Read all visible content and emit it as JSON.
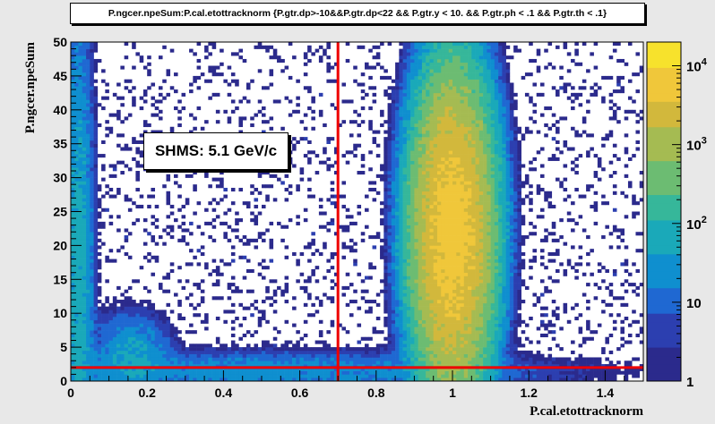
{
  "title": "P.ngcer.npeSum:P.cal.etottracknorm {P.gtr.dp>-10&&P.gtr.dp<22 && P.gtr.y < 10. && P.gtr.ph < .1 && P.gtr.th < .1}",
  "annotation": "SHMS: 5.1 GeV/c",
  "chart_data": {
    "type": "heatmap",
    "title": "P.ngcer.npeSum:P.cal.etottracknorm {P.gtr.dp>-10&&P.gtr.dp<22 && P.gtr.y < 10. && P.gtr.ph < .1 && P.gtr.th < .1}",
    "xlabel": "P.cal.etottracknorm",
    "ylabel": "P.ngcer.npeSum",
    "xlim": [
      0,
      1.5
    ],
    "ylim": [
      0,
      50
    ],
    "zscale": "log",
    "zlim": [
      1,
      20000
    ],
    "x_ticks": [
      "0",
      "0.2",
      "0.4",
      "0.6",
      "0.8",
      "1",
      "1.2",
      "1.4"
    ],
    "y_ticks": [
      "0",
      "5",
      "10",
      "15",
      "20",
      "25",
      "30",
      "35",
      "40",
      "45",
      "50"
    ],
    "z_ticks": [
      {
        "base": "10",
        "exp": "4",
        "value": 10000
      },
      {
        "base": "10",
        "exp": "3",
        "value": 1000
      },
      {
        "base": "10",
        "exp": "2",
        "value": 100
      },
      {
        "base": "10",
        "exp": "",
        "value": 10
      },
      {
        "base": "1",
        "exp": "",
        "value": 1
      }
    ],
    "cut_lines": [
      {
        "orientation": "vertical",
        "x": 0.7
      },
      {
        "orientation": "horizontal",
        "y": 2
      }
    ],
    "features": [
      {
        "name": "electron peak",
        "x_center": 1.0,
        "y_center": 22,
        "x_sigma": 0.045,
        "y_sigma": 10,
        "peak_counts": 6000
      },
      {
        "name": "low-energy pion band",
        "x_center": 0.02,
        "y_center": 15,
        "x_sigma": 0.02,
        "y_sigma": 20,
        "peak_counts": 60
      },
      {
        "name": "secondary cluster",
        "x_center": 0.16,
        "y_center": 4,
        "x_sigma": 0.05,
        "y_sigma": 3,
        "peak_counts": 40
      },
      {
        "name": "low-npe tail",
        "x_center": 0.5,
        "y_center": 1.5,
        "x_sigma": 0.4,
        "y_sigma": 1.5,
        "peak_counts": 25
      }
    ]
  },
  "colors": {
    "background": "#e8e8e8",
    "frame_bg": "#ffffff",
    "cut": "#ee0000",
    "palette": [
      "#2b2a8c",
      "#2c3fb0",
      "#1f68d2",
      "#0f8fcf",
      "#1aa9b9",
      "#36b79a",
      "#6cbc72",
      "#a5bb52",
      "#d2b83c",
      "#f0c73a",
      "#f7e22c"
    ]
  }
}
